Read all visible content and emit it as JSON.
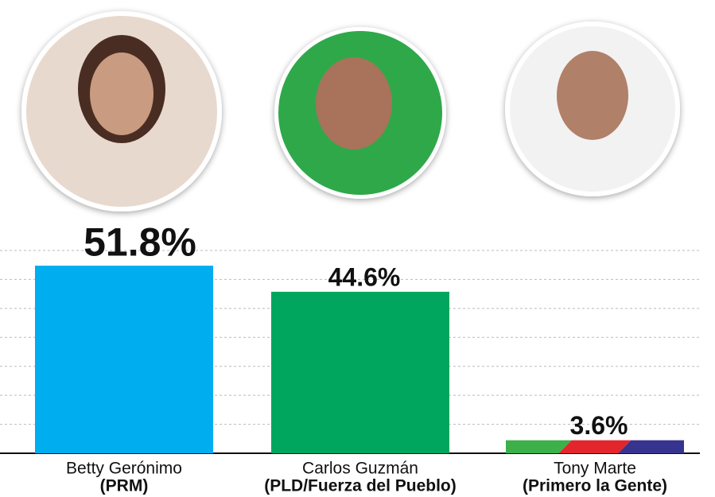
{
  "chart_data": {
    "type": "bar",
    "categories": [
      "Betty Gerónimo",
      "Carlos Guzmán",
      "Tony Marte"
    ],
    "parties": [
      "(PRM)",
      "(PLD/Fuerza del Pueblo)",
      "(Primero la Gente)"
    ],
    "values": [
      51.8,
      44.6,
      3.6
    ],
    "value_labels": [
      "51.8%",
      "44.6%",
      "3.6%"
    ],
    "colors": [
      "#00aeef",
      "#00a65d",
      [
        "#3db04a",
        "#e3262c",
        "#36348f"
      ]
    ],
    "ylim": [
      0,
      56
    ],
    "yticks": [
      0,
      8,
      16,
      24,
      32,
      40,
      48,
      56
    ],
    "grid": true
  }
}
